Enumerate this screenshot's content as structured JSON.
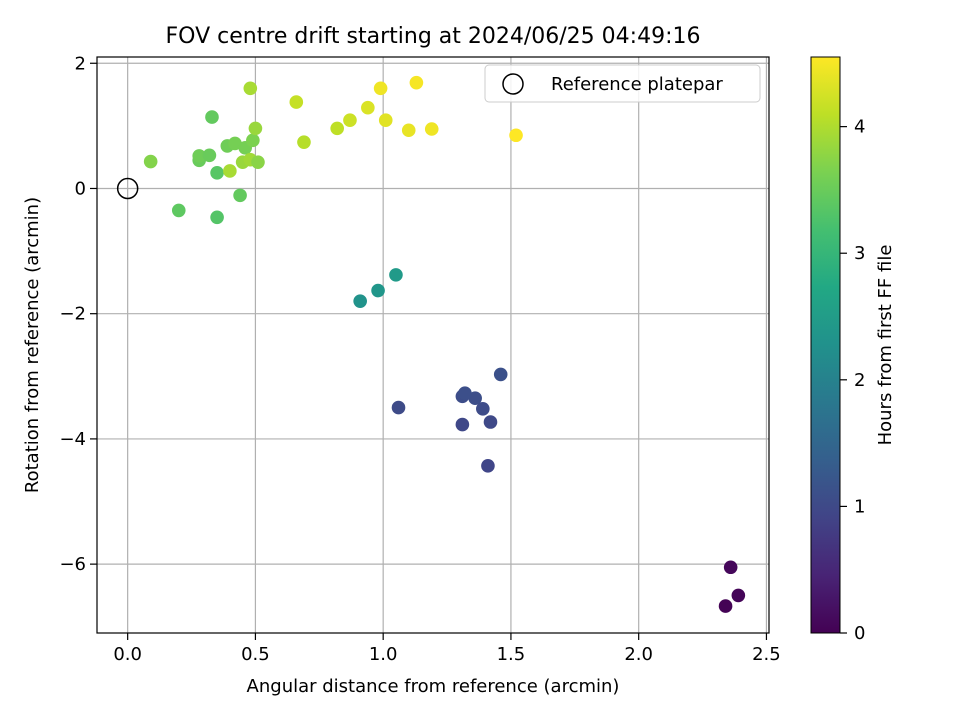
{
  "chart_data": {
    "type": "scatter",
    "title": "FOV centre drift starting at 2024/06/25 04:49:16",
    "xlabel": "Angular distance from reference (arcmin)",
    "ylabel": "Rotation from reference (arcmin)",
    "xlim": [
      -0.12,
      2.51
    ],
    "ylim": [
      -7.1,
      2.1
    ],
    "xticks": [
      0.0,
      0.5,
      1.0,
      1.5,
      2.0,
      2.5
    ],
    "xtick_labels": [
      "0.0",
      "0.5",
      "1.0",
      "1.5",
      "2.0",
      "2.5"
    ],
    "yticks": [
      -6,
      -4,
      -2,
      0,
      2
    ],
    "ytick_labels": [
      "−6",
      "−4",
      "−2",
      "0",
      "2"
    ],
    "grid": true,
    "legend": {
      "placement": "top-right",
      "entries": [
        "Reference platepar"
      ]
    },
    "reference_point": {
      "x": 0.0,
      "y": 0.0,
      "name": "Reference platepar"
    },
    "colorbar": {
      "label": "Hours from first FF file",
      "range": [
        0,
        4.55
      ],
      "ticks": [
        0,
        1,
        2,
        3,
        4
      ],
      "tick_labels": [
        "0",
        "1",
        "2",
        "3",
        "4"
      ],
      "colormap": "viridis"
    },
    "points": [
      {
        "x": 2.34,
        "y": -6.67,
        "hours": 0.02
      },
      {
        "x": 2.39,
        "y": -6.5,
        "hours": 0.05
      },
      {
        "x": 2.36,
        "y": -6.05,
        "hours": 0.08
      },
      {
        "x": 1.41,
        "y": -4.43,
        "hours": 0.95
      },
      {
        "x": 1.31,
        "y": -3.77,
        "hours": 0.98
      },
      {
        "x": 1.42,
        "y": -3.73,
        "hours": 1.0
      },
      {
        "x": 1.06,
        "y": -3.5,
        "hours": 1.02
      },
      {
        "x": 1.39,
        "y": -3.52,
        "hours": 1.04
      },
      {
        "x": 1.31,
        "y": -3.32,
        "hours": 1.06
      },
      {
        "x": 1.36,
        "y": -3.35,
        "hours": 1.08
      },
      {
        "x": 1.32,
        "y": -3.27,
        "hours": 1.1
      },
      {
        "x": 1.46,
        "y": -2.97,
        "hours": 1.12
      },
      {
        "x": 0.91,
        "y": -1.8,
        "hours": 2.32
      },
      {
        "x": 0.98,
        "y": -1.63,
        "hours": 2.38
      },
      {
        "x": 1.05,
        "y": -1.38,
        "hours": 2.45
      },
      {
        "x": 0.35,
        "y": -0.46,
        "hours": 3.32
      },
      {
        "x": 0.2,
        "y": -0.35,
        "hours": 3.4
      },
      {
        "x": 0.44,
        "y": -0.11,
        "hours": 3.45
      },
      {
        "x": 0.35,
        "y": 0.25,
        "hours": 3.35
      },
      {
        "x": 0.28,
        "y": 0.45,
        "hours": 3.5
      },
      {
        "x": 0.28,
        "y": 0.52,
        "hours": 3.55
      },
      {
        "x": 0.32,
        "y": 0.53,
        "hours": 3.5
      },
      {
        "x": 0.39,
        "y": 0.68,
        "hours": 3.55
      },
      {
        "x": 0.42,
        "y": 0.72,
        "hours": 3.6
      },
      {
        "x": 0.46,
        "y": 0.65,
        "hours": 3.6
      },
      {
        "x": 0.49,
        "y": 0.77,
        "hours": 3.65
      },
      {
        "x": 0.33,
        "y": 1.14,
        "hours": 3.45
      },
      {
        "x": 0.09,
        "y": 0.43,
        "hours": 3.7
      },
      {
        "x": 0.45,
        "y": 0.42,
        "hours": 3.85
      },
      {
        "x": 0.4,
        "y": 0.28,
        "hours": 3.95
      },
      {
        "x": 0.48,
        "y": 0.46,
        "hours": 3.9
      },
      {
        "x": 0.51,
        "y": 0.42,
        "hours": 3.75
      },
      {
        "x": 0.5,
        "y": 0.96,
        "hours": 3.85
      },
      {
        "x": 0.48,
        "y": 1.6,
        "hours": 3.95
      },
      {
        "x": 0.69,
        "y": 0.74,
        "hours": 4.05
      },
      {
        "x": 0.66,
        "y": 1.38,
        "hours": 4.15
      },
      {
        "x": 0.82,
        "y": 0.96,
        "hours": 4.1
      },
      {
        "x": 0.87,
        "y": 1.09,
        "hours": 4.2
      },
      {
        "x": 0.94,
        "y": 1.29,
        "hours": 4.3
      },
      {
        "x": 1.01,
        "y": 1.09,
        "hours": 4.35
      },
      {
        "x": 0.99,
        "y": 1.6,
        "hours": 4.45
      },
      {
        "x": 1.1,
        "y": 0.93,
        "hours": 4.4
      },
      {
        "x": 1.13,
        "y": 1.69,
        "hours": 4.5
      },
      {
        "x": 1.19,
        "y": 0.95,
        "hours": 4.45
      },
      {
        "x": 1.52,
        "y": 0.85,
        "hours": 4.55
      }
    ]
  }
}
